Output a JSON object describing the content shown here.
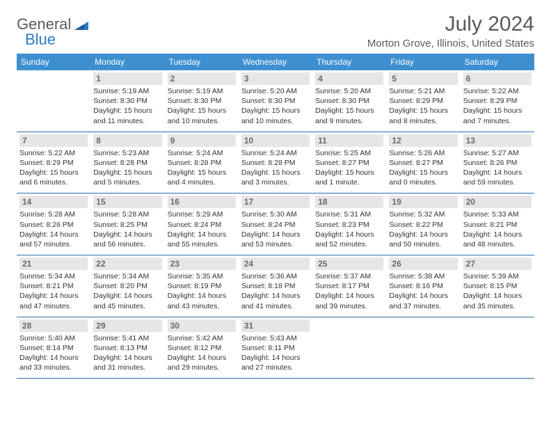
{
  "colors": {
    "header_bg": "#3d8fcf",
    "header_text": "#ffffff",
    "daynum_bg": "#e6e6e6",
    "daynum_text": "#6a6a6a",
    "cell_border": "#2b6ca8",
    "body_text": "#333333",
    "title_text": "#5a5a5a",
    "logo_gray": "#5a5a5a",
    "logo_blue": "#2b7ac0",
    "page_bg": "#ffffff"
  },
  "logo": {
    "word1": "General",
    "word2": "Blue"
  },
  "title": "July 2024",
  "location": "Morton Grove, Illinois, United States",
  "weekdays": [
    "Sunday",
    "Monday",
    "Tuesday",
    "Wednesday",
    "Thursday",
    "Friday",
    "Saturday"
  ],
  "weeks": [
    [
      null,
      {
        "n": "1",
        "sr": "Sunrise: 5:19 AM",
        "ss": "Sunset: 8:30 PM",
        "d1": "Daylight: 15 hours",
        "d2": "and 11 minutes."
      },
      {
        "n": "2",
        "sr": "Sunrise: 5:19 AM",
        "ss": "Sunset: 8:30 PM",
        "d1": "Daylight: 15 hours",
        "d2": "and 10 minutes."
      },
      {
        "n": "3",
        "sr": "Sunrise: 5:20 AM",
        "ss": "Sunset: 8:30 PM",
        "d1": "Daylight: 15 hours",
        "d2": "and 10 minutes."
      },
      {
        "n": "4",
        "sr": "Sunrise: 5:20 AM",
        "ss": "Sunset: 8:30 PM",
        "d1": "Daylight: 15 hours",
        "d2": "and 9 minutes."
      },
      {
        "n": "5",
        "sr": "Sunrise: 5:21 AM",
        "ss": "Sunset: 8:29 PM",
        "d1": "Daylight: 15 hours",
        "d2": "and 8 minutes."
      },
      {
        "n": "6",
        "sr": "Sunrise: 5:22 AM",
        "ss": "Sunset: 8:29 PM",
        "d1": "Daylight: 15 hours",
        "d2": "and 7 minutes."
      }
    ],
    [
      {
        "n": "7",
        "sr": "Sunrise: 5:22 AM",
        "ss": "Sunset: 8:29 PM",
        "d1": "Daylight: 15 hours",
        "d2": "and 6 minutes."
      },
      {
        "n": "8",
        "sr": "Sunrise: 5:23 AM",
        "ss": "Sunset: 8:28 PM",
        "d1": "Daylight: 15 hours",
        "d2": "and 5 minutes."
      },
      {
        "n": "9",
        "sr": "Sunrise: 5:24 AM",
        "ss": "Sunset: 8:28 PM",
        "d1": "Daylight: 15 hours",
        "d2": "and 4 minutes."
      },
      {
        "n": "10",
        "sr": "Sunrise: 5:24 AM",
        "ss": "Sunset: 8:28 PM",
        "d1": "Daylight: 15 hours",
        "d2": "and 3 minutes."
      },
      {
        "n": "11",
        "sr": "Sunrise: 5:25 AM",
        "ss": "Sunset: 8:27 PM",
        "d1": "Daylight: 15 hours",
        "d2": "and 1 minute."
      },
      {
        "n": "12",
        "sr": "Sunrise: 5:26 AM",
        "ss": "Sunset: 8:27 PM",
        "d1": "Daylight: 15 hours",
        "d2": "and 0 minutes."
      },
      {
        "n": "13",
        "sr": "Sunrise: 5:27 AM",
        "ss": "Sunset: 8:26 PM",
        "d1": "Daylight: 14 hours",
        "d2": "and 59 minutes."
      }
    ],
    [
      {
        "n": "14",
        "sr": "Sunrise: 5:28 AM",
        "ss": "Sunset: 8:26 PM",
        "d1": "Daylight: 14 hours",
        "d2": "and 57 minutes."
      },
      {
        "n": "15",
        "sr": "Sunrise: 5:28 AM",
        "ss": "Sunset: 8:25 PM",
        "d1": "Daylight: 14 hours",
        "d2": "and 56 minutes."
      },
      {
        "n": "16",
        "sr": "Sunrise: 5:29 AM",
        "ss": "Sunset: 8:24 PM",
        "d1": "Daylight: 14 hours",
        "d2": "and 55 minutes."
      },
      {
        "n": "17",
        "sr": "Sunrise: 5:30 AM",
        "ss": "Sunset: 8:24 PM",
        "d1": "Daylight: 14 hours",
        "d2": "and 53 minutes."
      },
      {
        "n": "18",
        "sr": "Sunrise: 5:31 AM",
        "ss": "Sunset: 8:23 PM",
        "d1": "Daylight: 14 hours",
        "d2": "and 52 minutes."
      },
      {
        "n": "19",
        "sr": "Sunrise: 5:32 AM",
        "ss": "Sunset: 8:22 PM",
        "d1": "Daylight: 14 hours",
        "d2": "and 50 minutes."
      },
      {
        "n": "20",
        "sr": "Sunrise: 5:33 AM",
        "ss": "Sunset: 8:21 PM",
        "d1": "Daylight: 14 hours",
        "d2": "and 48 minutes."
      }
    ],
    [
      {
        "n": "21",
        "sr": "Sunrise: 5:34 AM",
        "ss": "Sunset: 8:21 PM",
        "d1": "Daylight: 14 hours",
        "d2": "and 47 minutes."
      },
      {
        "n": "22",
        "sr": "Sunrise: 5:34 AM",
        "ss": "Sunset: 8:20 PM",
        "d1": "Daylight: 14 hours",
        "d2": "and 45 minutes."
      },
      {
        "n": "23",
        "sr": "Sunrise: 5:35 AM",
        "ss": "Sunset: 8:19 PM",
        "d1": "Daylight: 14 hours",
        "d2": "and 43 minutes."
      },
      {
        "n": "24",
        "sr": "Sunrise: 5:36 AM",
        "ss": "Sunset: 8:18 PM",
        "d1": "Daylight: 14 hours",
        "d2": "and 41 minutes."
      },
      {
        "n": "25",
        "sr": "Sunrise: 5:37 AM",
        "ss": "Sunset: 8:17 PM",
        "d1": "Daylight: 14 hours",
        "d2": "and 39 minutes."
      },
      {
        "n": "26",
        "sr": "Sunrise: 5:38 AM",
        "ss": "Sunset: 8:16 PM",
        "d1": "Daylight: 14 hours",
        "d2": "and 37 minutes."
      },
      {
        "n": "27",
        "sr": "Sunrise: 5:39 AM",
        "ss": "Sunset: 8:15 PM",
        "d1": "Daylight: 14 hours",
        "d2": "and 35 minutes."
      }
    ],
    [
      {
        "n": "28",
        "sr": "Sunrise: 5:40 AM",
        "ss": "Sunset: 8:14 PM",
        "d1": "Daylight: 14 hours",
        "d2": "and 33 minutes."
      },
      {
        "n": "29",
        "sr": "Sunrise: 5:41 AM",
        "ss": "Sunset: 8:13 PM",
        "d1": "Daylight: 14 hours",
        "d2": "and 31 minutes."
      },
      {
        "n": "30",
        "sr": "Sunrise: 5:42 AM",
        "ss": "Sunset: 8:12 PM",
        "d1": "Daylight: 14 hours",
        "d2": "and 29 minutes."
      },
      {
        "n": "31",
        "sr": "Sunrise: 5:43 AM",
        "ss": "Sunset: 8:11 PM",
        "d1": "Daylight: 14 hours",
        "d2": "and 27 minutes."
      },
      null,
      null,
      null
    ]
  ]
}
